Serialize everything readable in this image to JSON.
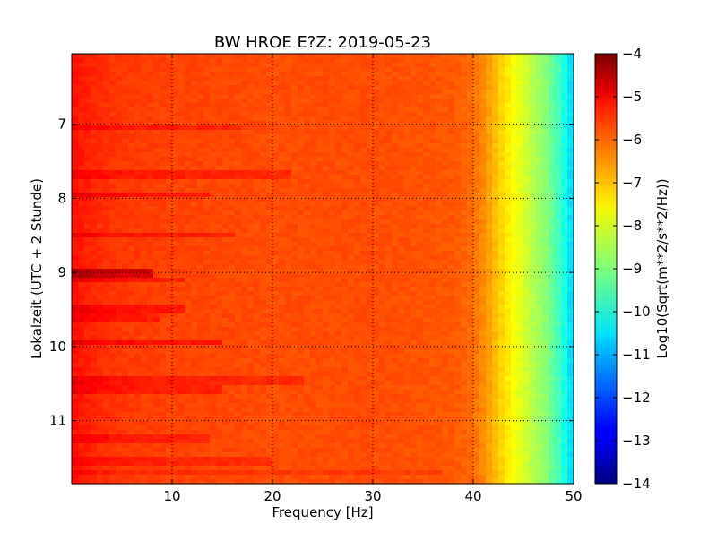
{
  "chart_data": {
    "type": "heatmap",
    "title": "BW HROE E?Z: 2019-05-23",
    "xlabel": "Frequency [Hz]",
    "ylabel": "Lokalzeit (UTC + 2 Stunde)",
    "xlim": [
      0,
      50
    ],
    "ylim_top_to_bottom": [
      6.05,
      11.85
    ],
    "x_ticks": [
      10,
      20,
      30,
      40,
      50
    ],
    "y_ticks": [
      7,
      8,
      9,
      10,
      11
    ],
    "grid": true,
    "colormap": "jet",
    "colorbar": {
      "label": "Log10(Sqrt(m**2/s**2/Hz))",
      "range": [
        -14,
        -4
      ],
      "ticks": [
        -4,
        -5,
        -6,
        -7,
        -8,
        -9,
        -10,
        -11,
        -12,
        -13,
        -14
      ]
    },
    "spectrum_profile": {
      "frequency_hz": [
        0,
        1,
        3,
        5,
        10,
        20,
        30,
        38,
        40,
        41,
        42,
        43,
        44,
        45,
        46,
        47,
        48,
        49,
        49.5,
        50
      ],
      "level": [
        -5.4,
        -5.5,
        -5.7,
        -5.8,
        -5.9,
        -6.0,
        -6.0,
        -6.1,
        -6.3,
        -6.6,
        -7.0,
        -7.4,
        -7.8,
        -8.1,
        -8.5,
        -8.8,
        -9.3,
        -9.9,
        -10.4,
        -10.7
      ]
    },
    "event_lines": [
      {
        "time": 7.05,
        "fmax": 17,
        "delta": 0.35
      },
      {
        "time": 7.7,
        "fmax": 22,
        "delta": 0.35
      },
      {
        "time": 7.95,
        "fmax": 14,
        "delta": 0.45
      },
      {
        "time": 8.5,
        "fmax": 16,
        "delta": 0.4
      },
      {
        "time": 9.0,
        "fmax": 8,
        "delta": 1.0
      },
      {
        "time": 9.1,
        "fmax": 11,
        "delta": 0.4
      },
      {
        "time": 9.5,
        "fmax": 11,
        "delta": 0.4
      },
      {
        "time": 9.6,
        "fmax": 9,
        "delta": 0.35
      },
      {
        "time": 9.95,
        "fmax": 15,
        "delta": 0.5
      },
      {
        "time": 10.45,
        "fmax": 23,
        "delta": 0.35
      },
      {
        "time": 10.6,
        "fmax": 15,
        "delta": 0.35
      },
      {
        "time": 11.25,
        "fmax": 14,
        "delta": 0.35
      },
      {
        "time": 11.55,
        "fmax": 20,
        "delta": 0.3
      },
      {
        "time": 11.7,
        "fmax": 37,
        "delta": 0.2
      }
    ]
  }
}
